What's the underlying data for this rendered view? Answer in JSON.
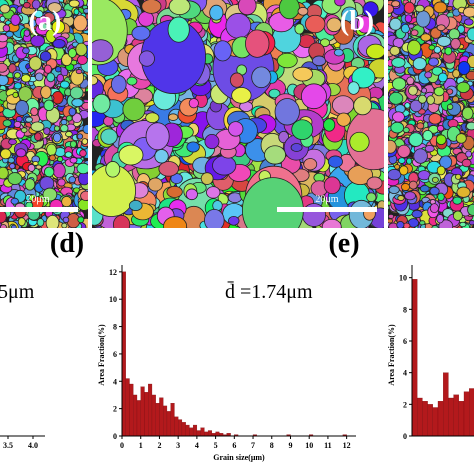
{
  "images": [
    {
      "label": "(a)",
      "scale_bar": "20μm"
    },
    {
      "label": "(b)",
      "scale_bar": "20μm"
    }
  ],
  "chart_data": [
    {
      "type": "histogram",
      "annotation": "5μm",
      "xlim": [
        3.34,
        4.24
      ],
      "xticks": [
        3.5,
        {
          "value": 4,
          "label": "4.0"
        }
      ]
    },
    {
      "type": "histogram",
      "panel_label": "(d)",
      "annotation": "d̄ =1.74μm",
      "xlabel": "Grain size(μm)",
      "ylabel": "Area Fraction(%)",
      "color": "#b3191c",
      "xlim": [
        0,
        12.5
      ],
      "ylim": [
        0,
        12.5
      ],
      "xticks": [
        0,
        1,
        2,
        3,
        4,
        5,
        6,
        7,
        8,
        9,
        10,
        11,
        12
      ],
      "yticks": [
        0,
        2,
        4,
        6,
        8,
        10,
        12
      ],
      "bins": [
        0,
        0.2,
        0.4,
        0.6,
        0.8,
        1,
        1.2,
        1.4,
        1.6,
        1.8,
        2,
        2.2,
        2.4,
        2.6,
        2.8,
        3,
        3.2,
        3.4,
        3.6,
        3.8,
        4,
        4.2,
        4.4,
        4.6,
        4.8,
        5,
        5.2,
        5.4,
        5.6,
        5.8,
        6,
        6.2,
        6.4,
        6.6,
        6.8,
        7,
        7.2,
        7.4,
        7.6,
        7.8,
        8,
        8.2,
        8.4,
        8.6,
        8.8,
        9,
        9.2,
        9.4,
        9.6,
        9.8,
        10,
        10.2,
        10.4,
        10.6,
        10.8,
        11,
        11.2,
        11.4,
        11.6,
        11.8,
        12
      ],
      "values": [
        12,
        4.2,
        3.8,
        3,
        2.6,
        3.6,
        3.2,
        3.8,
        3,
        2.4,
        2.8,
        2.2,
        1.8,
        2.4,
        1.4,
        1.2,
        1,
        0.8,
        0.6,
        0.8,
        0.4,
        0.6,
        0.3,
        0.4,
        0.2,
        0.3,
        0.2,
        0.1,
        0.2,
        0,
        0.1,
        0,
        0,
        0,
        0,
        0.1,
        0,
        0,
        0,
        0,
        0,
        0,
        0,
        0,
        0.1,
        0,
        0,
        0,
        0,
        0,
        0.1,
        0,
        0,
        0,
        0,
        0,
        0,
        0,
        0,
        0.1
      ]
    },
    {
      "type": "histogram",
      "panel_label": "(e)",
      "ylabel": "Area Fraction(%)",
      "color": "#b3191c",
      "xlim": [
        0,
        4
      ],
      "ylim": [
        0,
        10.8
      ],
      "yticks": [
        0,
        2,
        4,
        6,
        8,
        10
      ],
      "bins": [
        0,
        0.1,
        0.2,
        0.3,
        0.4,
        0.5,
        0.6,
        0.7,
        0.8,
        0.9,
        1,
        1.1,
        1.2
      ],
      "values": [
        9.9,
        2.4,
        2.2,
        2,
        1.8,
        2.2,
        4,
        2.4,
        2.6,
        2.2,
        2.8,
        3
      ]
    }
  ]
}
